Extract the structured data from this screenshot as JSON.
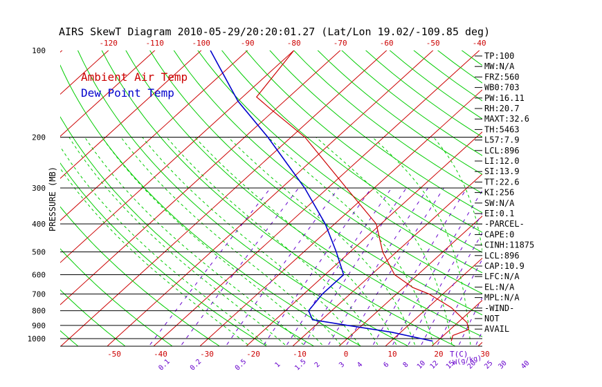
{
  "chart_data": {
    "type": "line",
    "title": "AIRS SkewT Diagram 2010-05-29/20:20:01.27 (Lat/Lon 19.02/-109.85 deg)",
    "ylabel": "PRESSURE (MB)",
    "x_unit_label": "T(C)",
    "mixing_ratio_unit_label": "W(g/kg)",
    "legend": [
      "Ambient Air Temp",
      "Dew Point Temp"
    ],
    "legend_placement": "top-left",
    "legend_colors": {
      "ambient": "#cc0000",
      "dew_point": "#0000cc"
    },
    "colors": {
      "isotherms": "#cc0000",
      "dry_adiabats": "#00cc00",
      "moist_adiabats": "#00cc00",
      "mixing_ratio": "#6600cc",
      "pressure_lines": "#000000"
    },
    "ylim": [
      1000,
      100
    ],
    "y_scale": "log",
    "pressure_ticks": [
      100,
      200,
      300,
      400,
      500,
      600,
      700,
      800,
      900,
      1000
    ],
    "pressure_lines": [
      200,
      300,
      400,
      500,
      600,
      700,
      800,
      900,
      1000
    ],
    "bottom_temp_ticks": [
      -50,
      -40,
      -30,
      -20,
      -10,
      0,
      10,
      20,
      30
    ],
    "top_temp_ticks": [
      -120,
      -110,
      -100,
      -90,
      -80,
      -70,
      -60,
      -50,
      -40
    ],
    "mixing_ratio_labels": [
      "0.1",
      "0.2",
      "0.5",
      "1",
      "1.5",
      "2",
      "3",
      "4",
      "6",
      "8",
      "10",
      "12",
      "15",
      "20",
      "25",
      "30",
      "40"
    ],
    "series": [
      {
        "name": "Ambient Air Temp",
        "color": "#cc0000",
        "points": [
          {
            "p": 1020,
            "t": 23
          },
          {
            "p": 975,
            "t": 22
          },
          {
            "p": 930,
            "t": 24
          },
          {
            "p": 880,
            "t": 22
          },
          {
            "p": 780,
            "t": 15
          },
          {
            "p": 700,
            "t": 7
          },
          {
            "p": 665,
            "t": 2
          },
          {
            "p": 600,
            "t": -5
          },
          {
            "p": 500,
            "t": -13
          },
          {
            "p": 400,
            "t": -21
          },
          {
            "p": 300,
            "t": -36
          },
          {
            "p": 200,
            "t": -57
          },
          {
            "p": 160,
            "t": -71
          },
          {
            "p": 145,
            "t": -77
          },
          {
            "p": 100,
            "t": -80
          }
        ]
      },
      {
        "name": "Dew Point Temp",
        "color": "#0000cc",
        "points": [
          {
            "p": 1020,
            "t": 19
          },
          {
            "p": 950,
            "t": 8
          },
          {
            "p": 900,
            "t": -3
          },
          {
            "p": 860,
            "t": -12
          },
          {
            "p": 800,
            "t": -15
          },
          {
            "p": 700,
            "t": -16
          },
          {
            "p": 600,
            "t": -16
          },
          {
            "p": 500,
            "t": -23
          },
          {
            "p": 400,
            "t": -32
          },
          {
            "p": 300,
            "t": -45
          },
          {
            "p": 200,
            "t": -65
          },
          {
            "p": 150,
            "t": -80
          },
          {
            "p": 100,
            "t": -98
          }
        ]
      }
    ]
  },
  "indices": [
    {
      "label": "TP:100"
    },
    {
      "label": "MW:N/A"
    },
    {
      "label": "FRZ:560"
    },
    {
      "label": "WB0:703"
    },
    {
      "label": "PW:16.11"
    },
    {
      "label": "RH:20.7"
    },
    {
      "label": "MAXT:32.6"
    },
    {
      "label": "TH:5463"
    },
    {
      "label": "L57:7.9"
    },
    {
      "label": "LCL:896"
    },
    {
      "label": "LI:12.0"
    },
    {
      "label": "SI:13.9"
    },
    {
      "label": "TT:22.6"
    },
    {
      "label": "KI:256"
    },
    {
      "label": "SW:N/A"
    },
    {
      "label": "EI:0.1"
    },
    {
      "label": "-PARCEL-"
    },
    {
      "label": "CAPE:0"
    },
    {
      "label": "CINH:11875"
    },
    {
      "label": "LCL:896"
    },
    {
      "label": "CAP:10.9"
    },
    {
      "label": "LFC:N/A"
    },
    {
      "label": "EL:N/A"
    },
    {
      "label": "MPL:N/A"
    },
    {
      "label": "-WIND-"
    },
    {
      "label": "NOT"
    },
    {
      "label": "AVAIL"
    }
  ]
}
